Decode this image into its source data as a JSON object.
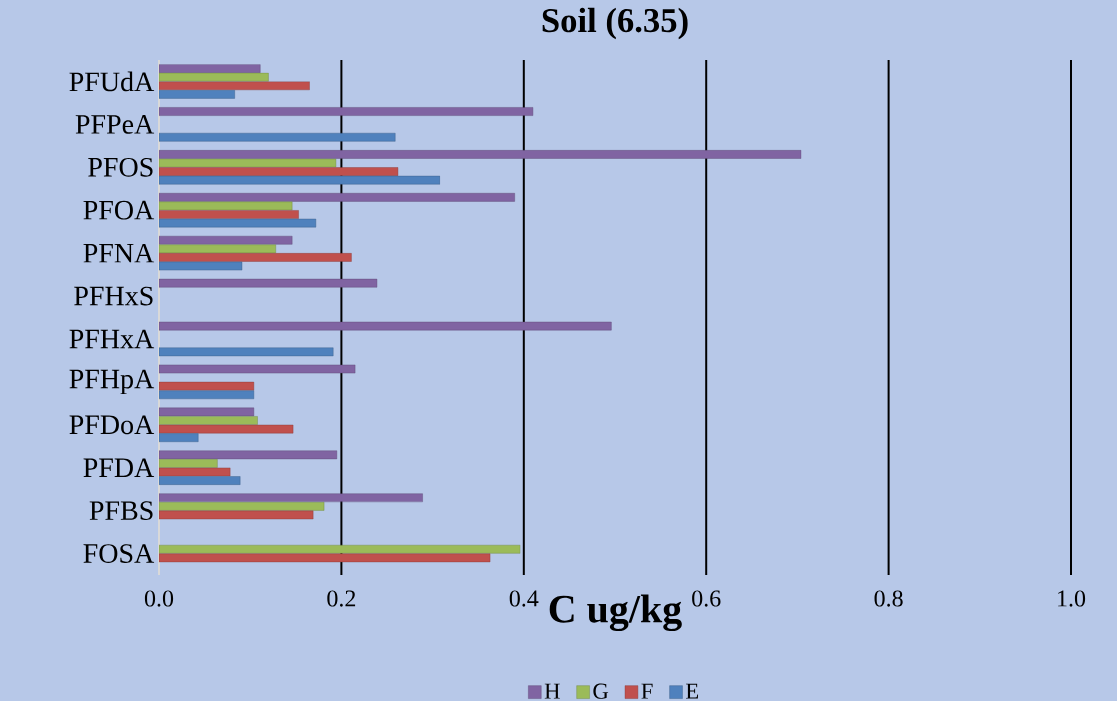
{
  "chart_data": {
    "type": "bar",
    "orientation": "horizontal",
    "title": "Soil (6.35)",
    "xlabel": "C ug/kg",
    "categories": [
      "PFUdA",
      "PFPeA",
      "PFOS",
      "PFOA",
      "PFNA",
      "PFHxS",
      "PFHxA",
      "PFHpA",
      "PFDoA",
      "PFDA",
      "PFBS",
      "FOSA"
    ],
    "series": [
      {
        "name": "H",
        "color": "#8064a2",
        "values": [
          0.111,
          0.41,
          0.704,
          0.39,
          0.146,
          0.239,
          0.496,
          0.215,
          0.104,
          0.195,
          0.289,
          null
        ]
      },
      {
        "name": "G",
        "color": "#9bbb59",
        "values": [
          0.12,
          null,
          0.194,
          0.146,
          0.128,
          null,
          null,
          null,
          0.108,
          0.064,
          0.181,
          0.396
        ]
      },
      {
        "name": "F",
        "color": "#c0504d",
        "values": [
          0.165,
          null,
          0.262,
          0.153,
          0.211,
          null,
          null,
          0.104,
          0.147,
          0.078,
          0.169,
          0.363
        ]
      },
      {
        "name": "E",
        "color": "#4f81bd",
        "values": [
          0.083,
          0.259,
          0.308,
          0.172,
          0.091,
          null,
          0.191,
          0.104,
          0.043,
          0.089,
          null,
          null
        ]
      }
    ],
    "xlim": [
      0,
      1.0
    ],
    "xticks": [
      {
        "value": 0,
        "label": "0.0"
      },
      {
        "value": 0.2,
        "label": "0.2"
      },
      {
        "value": 0.4,
        "label": "0.4"
      },
      {
        "value": 0.6,
        "label": "0.6"
      },
      {
        "value": 0.8,
        "label": "0.8"
      },
      {
        "value": 1.0,
        "label": "1.0"
      }
    ],
    "grid": "x",
    "legend": "bottom"
  }
}
